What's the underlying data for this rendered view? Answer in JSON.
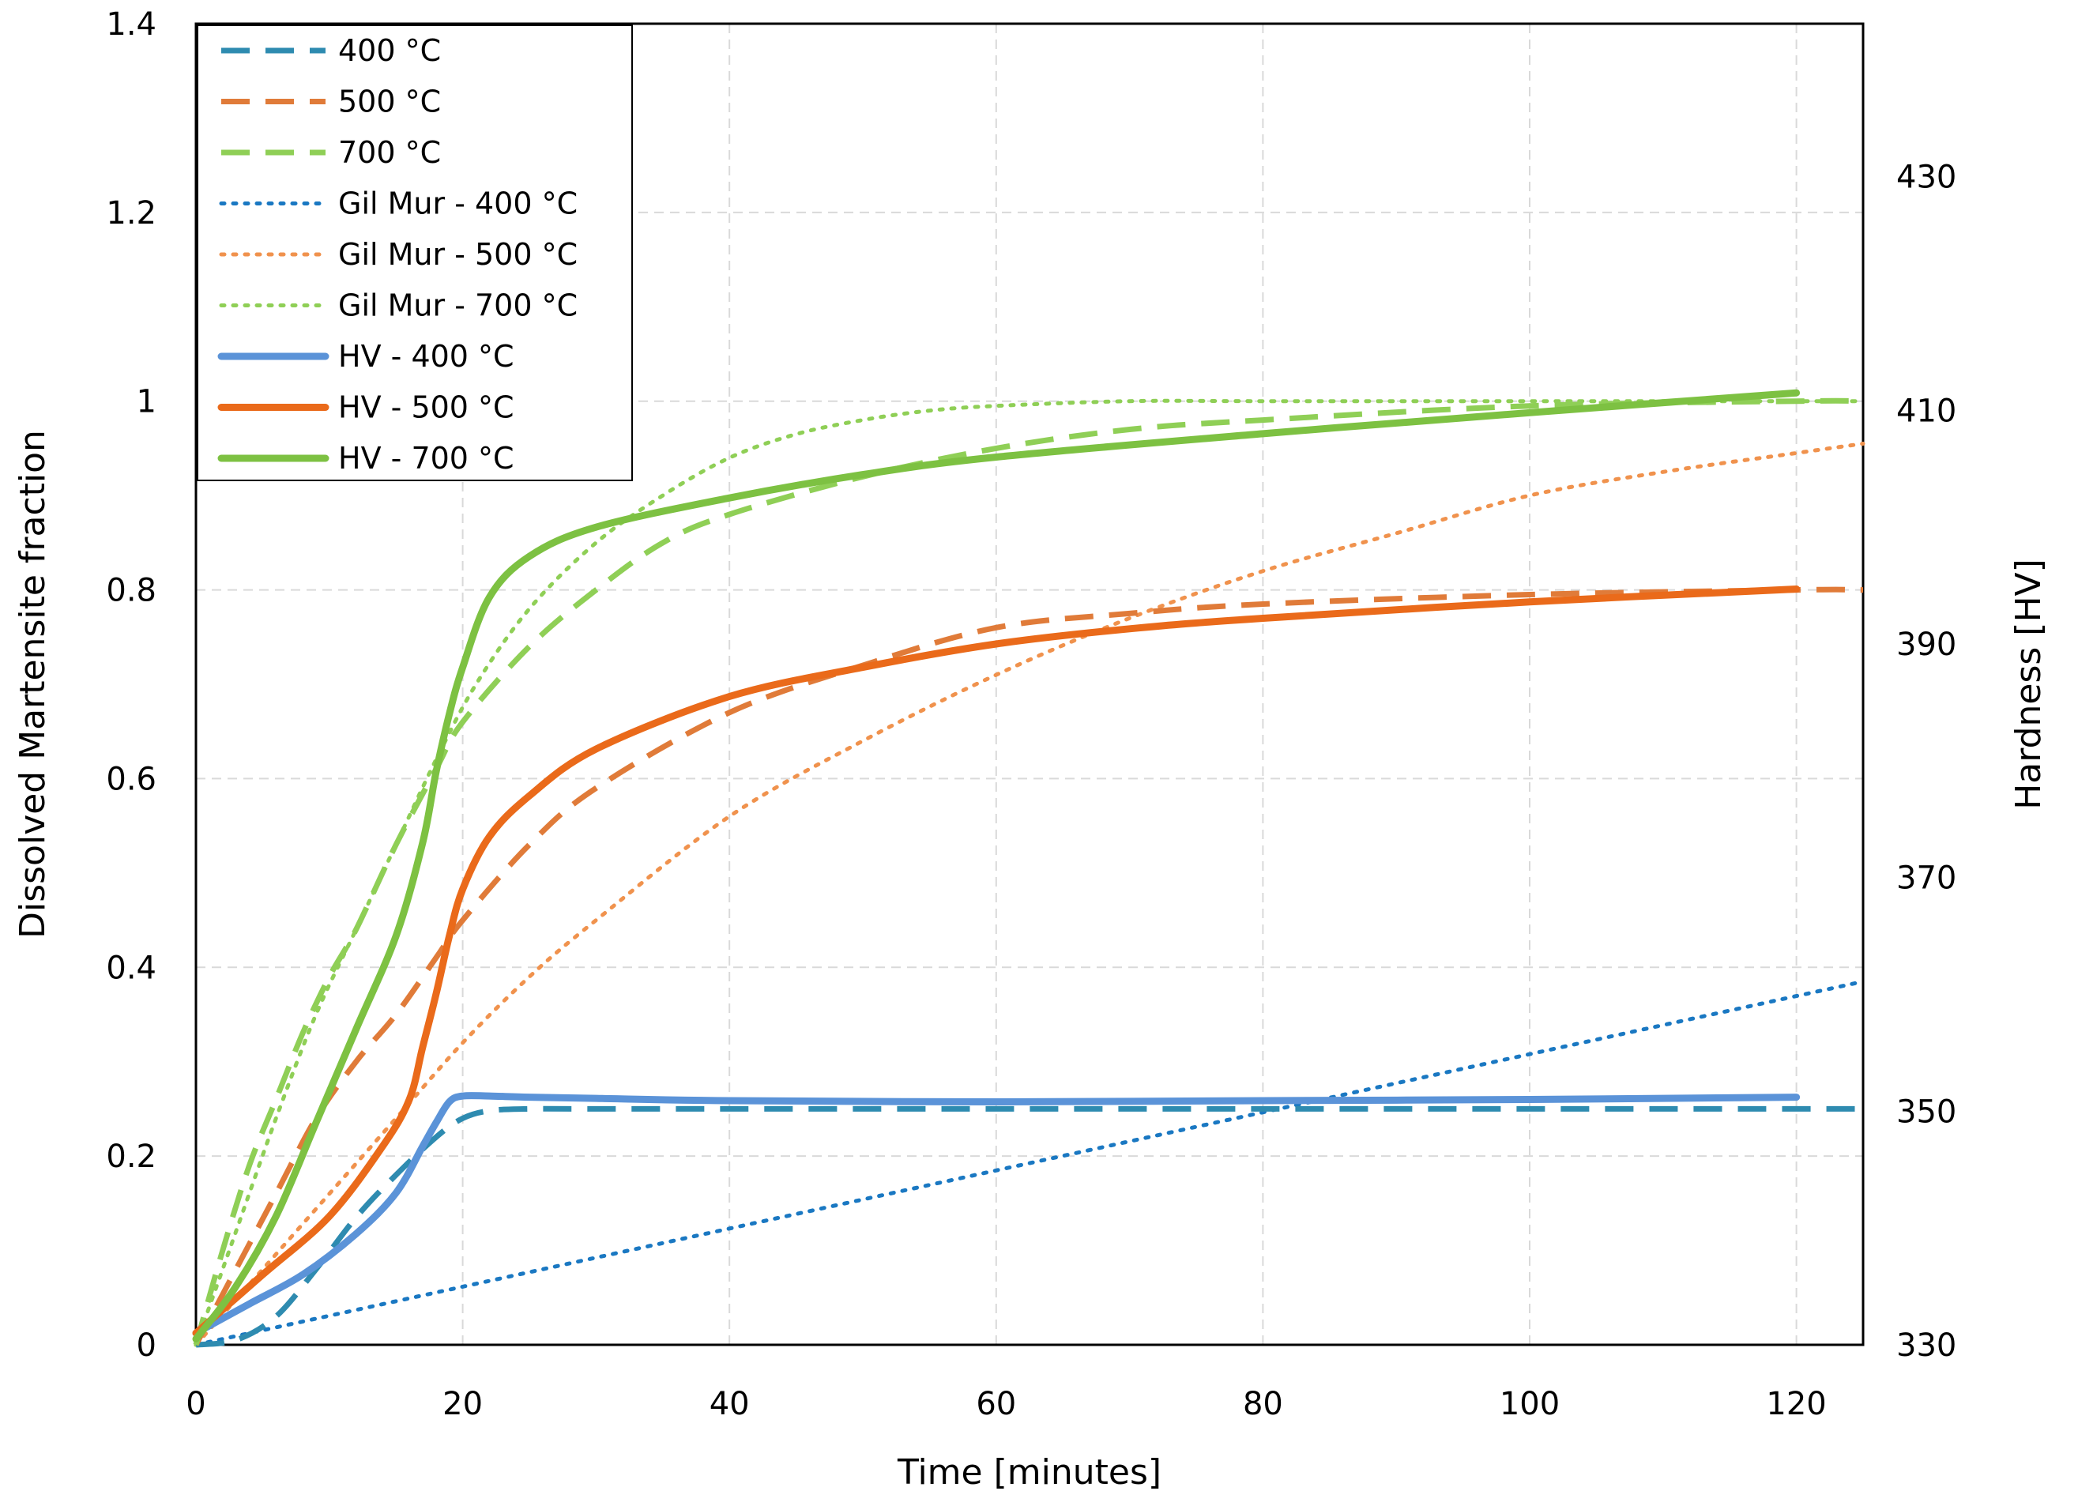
{
  "chart_data": {
    "type": "line",
    "title": "",
    "xlabel": "Time [minutes]",
    "ylabel": "Dissolved Martensite fraction",
    "y2label": "Hardness [HV]",
    "xlim": [
      0,
      125
    ],
    "ylim": [
      0,
      1.4
    ],
    "y2lim": [
      330,
      443.1
    ],
    "grid": true,
    "legend": "top-left",
    "x_ticks": [
      "0",
      "20",
      "40",
      "60",
      "80",
      "100",
      "120"
    ],
    "y_ticks": [
      "0",
      "0.2",
      "0.4",
      "0.6",
      "0.8",
      "1",
      "1.2",
      "1.4"
    ],
    "y2_ticks": [
      "330",
      "350",
      "370",
      "390",
      "410",
      "430"
    ],
    "series": [
      {
        "name": "400 °C",
        "axis": "left",
        "style": "dashed",
        "color": "#2e8bb0",
        "x": [
          0,
          3,
          6,
          9,
          12,
          15,
          18,
          20,
          22,
          25,
          30,
          40,
          60,
          80,
          100,
          120,
          125
        ],
        "y": [
          0,
          0.005,
          0.03,
          0.08,
          0.135,
          0.18,
          0.22,
          0.24,
          0.248,
          0.25,
          0.25,
          0.25,
          0.25,
          0.25,
          0.25,
          0.25,
          0.25
        ]
      },
      {
        "name": "500 °C",
        "axis": "left",
        "style": "dashed",
        "color": "#e07b39",
        "x": [
          0,
          3,
          6,
          9,
          12,
          15,
          18,
          20,
          25,
          30,
          40,
          50,
          60,
          70,
          80,
          100,
          120,
          125
        ],
        "y": [
          0,
          0.08,
          0.16,
          0.24,
          0.3,
          0.35,
          0.41,
          0.45,
          0.53,
          0.59,
          0.67,
          0.72,
          0.76,
          0.775,
          0.785,
          0.795,
          0.8,
          0.8
        ]
      },
      {
        "name": "700 °C",
        "axis": "left",
        "style": "dashed",
        "color": "#8fcf56",
        "x": [
          0,
          2,
          4,
          6,
          8,
          10,
          12,
          15,
          18,
          20,
          25,
          30,
          35,
          40,
          50,
          60,
          70,
          80,
          100,
          120,
          125
        ],
        "y": [
          0,
          0.1,
          0.19,
          0.26,
          0.33,
          0.39,
          0.44,
          0.53,
          0.61,
          0.66,
          0.74,
          0.8,
          0.85,
          0.88,
          0.92,
          0.95,
          0.97,
          0.98,
          0.995,
          1.0,
          1.0
        ]
      },
      {
        "name": "Gil Mur - 400 °C",
        "axis": "left",
        "style": "dotted",
        "color": "#1a78c2",
        "x": [
          0,
          125
        ],
        "y": [
          0,
          0.385
        ]
      },
      {
        "name": "Gil Mur - 500 °C",
        "axis": "left",
        "style": "dotted",
        "color": "#f0924d",
        "x": [
          0,
          5,
          10,
          15,
          20,
          25,
          30,
          40,
          50,
          60,
          70,
          80,
          90,
          100,
          110,
          120,
          125
        ],
        "y": [
          0,
          0.08,
          0.16,
          0.24,
          0.32,
          0.39,
          0.45,
          0.56,
          0.64,
          0.71,
          0.77,
          0.82,
          0.86,
          0.9,
          0.925,
          0.945,
          0.955
        ]
      },
      {
        "name": "Gil Mur - 700 °C",
        "axis": "left",
        "style": "dotted",
        "color": "#8fcf56",
        "x": [
          0,
          3,
          6,
          9,
          12,
          15,
          18,
          21,
          25,
          30,
          35,
          40,
          45,
          50,
          55,
          60,
          70,
          80,
          100,
          125
        ],
        "y": [
          0,
          0.12,
          0.24,
          0.35,
          0.44,
          0.53,
          0.62,
          0.7,
          0.78,
          0.85,
          0.9,
          0.94,
          0.965,
          0.98,
          0.99,
          0.995,
          1.0,
          1.0,
          1.0,
          1.0
        ]
      },
      {
        "name": "HV - 400 °C",
        "axis": "right",
        "style": "solid",
        "color": "#5b93d8",
        "x": [
          0,
          4,
          8,
          12,
          15,
          17,
          18,
          19,
          20,
          22,
          25,
          30,
          40,
          60,
          80,
          100,
          120
        ],
        "y": [
          331,
          333.5,
          336,
          339.5,
          343,
          347,
          349,
          350.8,
          351.3,
          351.3,
          351.2,
          351.1,
          350.9,
          350.8,
          350.9,
          351,
          351.2
        ]
      },
      {
        "name": "HV - 500 °C",
        "axis": "right",
        "style": "solid",
        "color": "#ea6a1a",
        "x": [
          0,
          5,
          10,
          14,
          16,
          17,
          18,
          19,
          20,
          22,
          25,
          30,
          40,
          50,
          60,
          70,
          80,
          100,
          120
        ],
        "y": [
          331,
          336,
          341,
          347,
          351,
          355.5,
          360,
          365,
          369,
          373.5,
          377,
          381,
          385.5,
          388,
          390,
          391.3,
          392.2,
          393.6,
          394.7
        ]
      },
      {
        "name": "HV - 700 °C",
        "axis": "right",
        "style": "solid",
        "color": "#7dc142",
        "x": [
          0,
          3,
          6,
          9,
          12,
          15,
          17,
          18,
          19,
          20,
          22,
          25,
          30,
          40,
          50,
          60,
          80,
          100,
          120
        ],
        "y": [
          330.5,
          335,
          341,
          349,
          357,
          365,
          373,
          379,
          384,
          388,
          394,
          397.5,
          400,
          402.5,
          404.5,
          406,
          408,
          409.8,
          411.5
        ]
      }
    ]
  }
}
